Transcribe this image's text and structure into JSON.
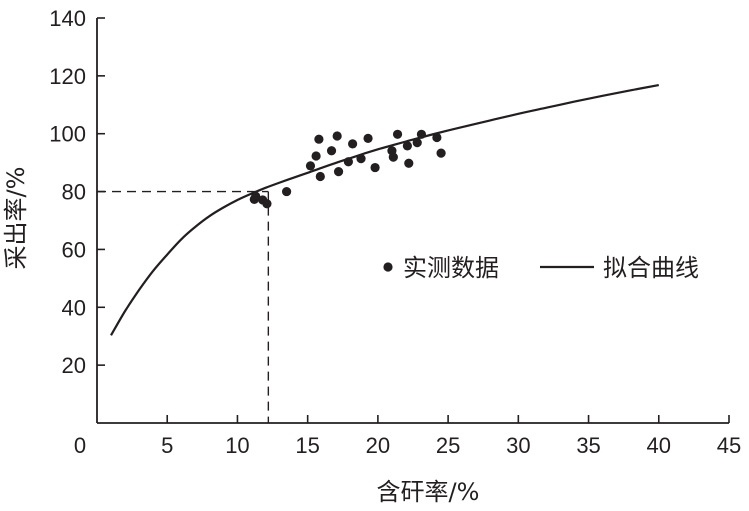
{
  "chart_data": {
    "type": "scatter",
    "xlabel": "含矸率/%",
    "ylabel": "采出率/%",
    "xlim": [
      0,
      45
    ],
    "ylim": [
      0,
      140
    ],
    "x_ticks": [
      0,
      5,
      10,
      15,
      20,
      25,
      30,
      35,
      40,
      45
    ],
    "y_ticks": [
      20,
      40,
      60,
      80,
      100,
      120,
      140
    ],
    "grid": false,
    "legend_position": "right-middle",
    "colors": {
      "ink": "#231f20"
    },
    "series": [
      {
        "name": "实测数据",
        "kind": "points",
        "x": [
          11.2,
          11.3,
          11.8,
          12.1,
          13.5,
          15.2,
          15.6,
          15.8,
          15.9,
          16.7,
          17.1,
          17.2,
          17.9,
          18.2,
          18.8,
          19.3,
          19.8,
          21.0,
          21.1,
          21.4,
          22.1,
          22.2,
          22.8,
          23.1,
          24.2,
          24.5
        ],
        "y": [
          77.3,
          78.4,
          77.1,
          75.8,
          80.0,
          88.9,
          92.3,
          98.1,
          85.2,
          94.1,
          99.2,
          86.9,
          90.3,
          96.5,
          91.4,
          98.4,
          88.3,
          94.1,
          91.9,
          99.8,
          95.8,
          89.8,
          96.9,
          99.8,
          98.7,
          93.3
        ]
      },
      {
        "name": "拟合曲线",
        "kind": "line",
        "x": [
          1,
          2,
          3,
          4,
          5,
          6,
          7,
          8,
          9,
          10,
          11,
          12,
          13,
          14,
          15,
          16,
          17,
          18,
          19,
          20,
          22,
          24,
          26,
          28,
          30,
          32,
          34,
          36,
          38,
          40
        ],
        "y": [
          30.3,
          38.7,
          46.0,
          52.6,
          58.2,
          63.5,
          67.8,
          71.5,
          74.5,
          77.1,
          79.3,
          81.3,
          83.1,
          84.8,
          86.5,
          88.2,
          89.9,
          91.5,
          93.1,
          94.6,
          97.3,
          99.9,
          102.3,
          104.6,
          106.9,
          109.0,
          111.1,
          113.1,
          115.0,
          116.8
        ]
      }
    ],
    "reference": {
      "x": 12.2,
      "y": 80
    }
  }
}
